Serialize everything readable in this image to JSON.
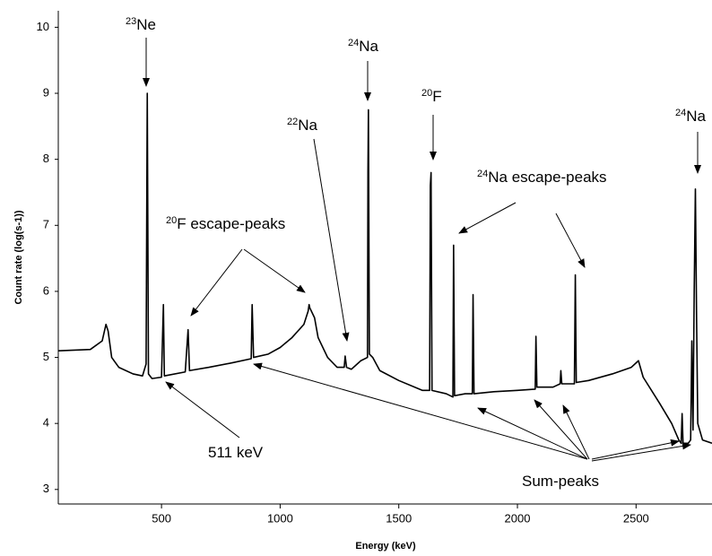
{
  "chart_data": {
    "type": "line",
    "y_label": "Count rate (log(s-1))",
    "x_label": "Energy (keV)",
    "annotations": {
      "ne23": {
        "sup": "23",
        "text": "Ne"
      },
      "na24_left": {
        "sup": "24",
        "text": "Na"
      },
      "na22": {
        "sup": "22",
        "text": "Na"
      },
      "f20": {
        "sup": "20",
        "text": "F"
      },
      "na24_escape": {
        "sup": "24",
        "text": "Na escape-peaks"
      },
      "f20_escape": {
        "sup": "20",
        "text": "F escape-peaks"
      },
      "na24_right": {
        "sup": "24",
        "text": "Na"
      },
      "kev511": "511 keV",
      "sum_peaks": "Sum-peaks"
    },
    "color": "#000000",
    "x": [
      65,
      200,
      250,
      266,
      275,
      290,
      320,
      380,
      420,
      435,
      440,
      445,
      460,
      500,
      508,
      512,
      600,
      612,
      618,
      700,
      800,
      878,
      882,
      888,
      950,
      1000,
      1050,
      1100,
      1118,
      1122,
      1125,
      1145,
      1160,
      1200,
      1240,
      1270,
      1274,
      1280,
      1300,
      1340,
      1368,
      1370,
      1372,
      1376,
      1390,
      1420,
      1500,
      1600,
      1630,
      1633,
      1636,
      1640,
      1700,
      1728,
      1731,
      1735,
      1780,
      1810,
      1813,
      1817,
      1900,
      2000,
      2075,
      2078,
      2082,
      2150,
      2180,
      2183,
      2187,
      2240,
      2244,
      2248,
      2300,
      2400,
      2480,
      2510,
      2530,
      2600,
      2650,
      2680,
      2690,
      2694,
      2698,
      2720,
      2730,
      2735,
      2740,
      2745,
      2750,
      2755,
      2760,
      2780,
      2820
    ],
    "values": [
      5.1,
      5.12,
      5.25,
      5.5,
      5.4,
      5.0,
      4.85,
      4.75,
      4.72,
      4.9,
      9.0,
      4.75,
      4.68,
      4.7,
      5.8,
      4.72,
      4.78,
      5.42,
      4.8,
      4.85,
      4.92,
      4.98,
      5.8,
      5.0,
      5.05,
      5.15,
      5.3,
      5.5,
      5.7,
      5.8,
      5.75,
      5.6,
      5.3,
      5.0,
      4.85,
      4.85,
      5.02,
      4.85,
      4.82,
      4.95,
      5.0,
      7.8,
      8.75,
      5.05,
      5.0,
      4.8,
      4.65,
      4.5,
      4.5,
      7.6,
      7.8,
      4.5,
      4.45,
      4.4,
      6.7,
      4.42,
      4.45,
      4.45,
      5.95,
      4.45,
      4.48,
      4.5,
      4.52,
      5.32,
      4.55,
      4.55,
      4.6,
      4.8,
      4.6,
      4.6,
      6.25,
      4.62,
      4.65,
      4.75,
      4.85,
      4.95,
      4.7,
      4.3,
      4.0,
      3.75,
      3.7,
      4.15,
      3.7,
      3.7,
      3.75,
      5.25,
      3.9,
      6.0,
      7.55,
      5.6,
      4.0,
      3.75,
      3.7
    ],
    "xlim": [
      65,
      2820
    ],
    "ylim": [
      2.78,
      10.25
    ],
    "xticks": [
      500,
      1000,
      1500,
      2000,
      2500
    ],
    "yticks": [
      3,
      4,
      5,
      6,
      7,
      8,
      9,
      10
    ],
    "grid": false
  }
}
